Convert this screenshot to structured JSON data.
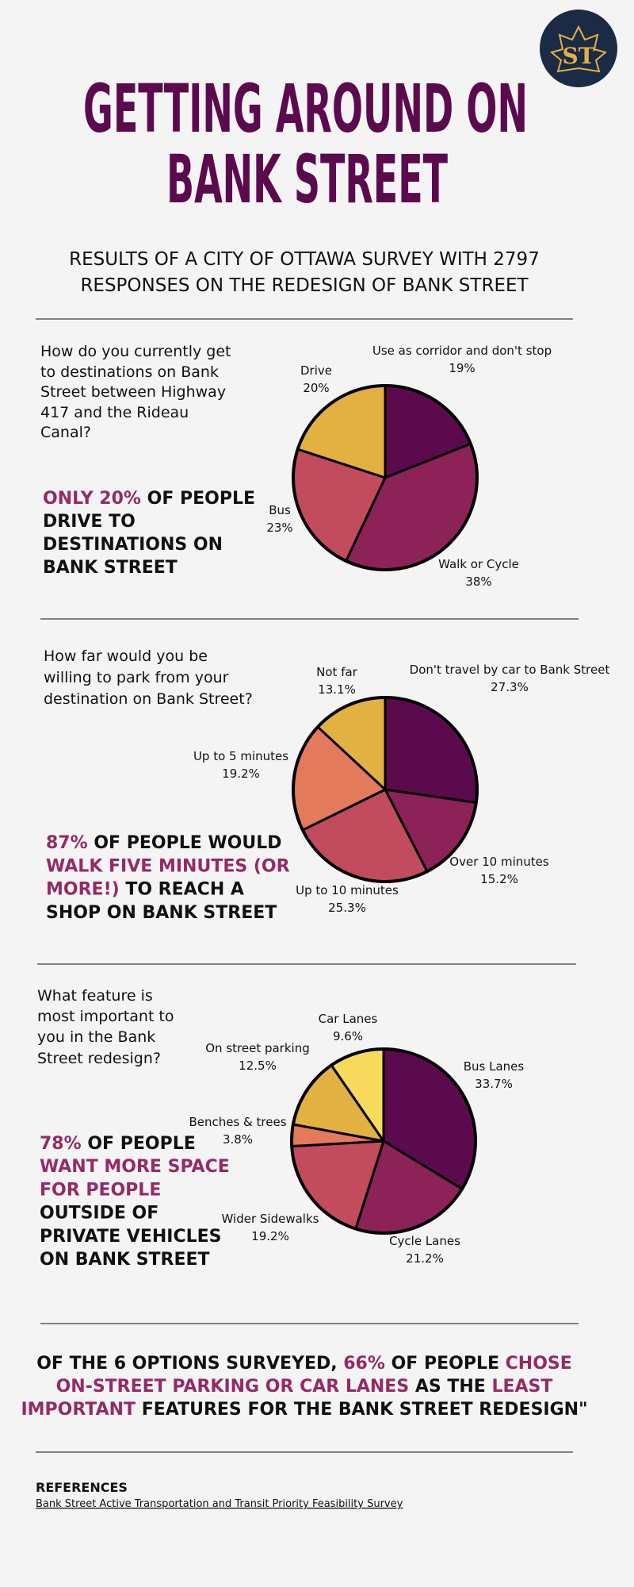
{
  "header": {
    "logo": "ST",
    "title_lines": [
      "GETTING AROUND ON",
      "BANK STREET"
    ],
    "subtitle_lines": [
      "RESULTS OF A CITY OF OTTAWA SURVEY WITH 2797",
      "RESPONSES ON THE REDESIGN OF BANK STREET"
    ]
  },
  "chart_data": [
    {
      "type": "pie",
      "title_lines": [
        "How do you currently get",
        "to destinations on Bank",
        "Street between Highway",
        "417 and the Rideau",
        "Canal?"
      ],
      "categories": [
        "Use as corridor and don't stop",
        "Walk or Cycle",
        "Bus",
        "Drive"
      ],
      "values": [
        19,
        38,
        23,
        20
      ],
      "value_labels": [
        "19%",
        "38%",
        "23%",
        "20%"
      ],
      "colors": [
        "#5c0a4e",
        "#8c2257",
        "#c24b5e",
        "#e3b141"
      ]
    },
    {
      "type": "pie",
      "title_lines": [
        "How far would you be",
        "willing to park from your",
        "destination on Bank Street?"
      ],
      "categories": [
        "Don't travel by car to Bank Street",
        "Over 10 minutes",
        "Up to 10 minutes",
        "Up to 5 minutes",
        "Not far"
      ],
      "values": [
        27.3,
        15.2,
        25.3,
        19.2,
        13.1
      ],
      "value_labels": [
        "27.3%",
        "15.2%",
        "25.3%",
        "19.2%",
        "13.1%"
      ],
      "colors": [
        "#5c0a4e",
        "#8c2257",
        "#c24b5e",
        "#e27a5b",
        "#e3b141"
      ]
    },
    {
      "type": "pie",
      "title_lines": [
        "What feature is",
        "most important to",
        "you in the Bank",
        "Street redesign?"
      ],
      "categories": [
        "Bus Lanes",
        "Cycle Lanes",
        "Wider Sidewalks",
        "Benches & trees",
        "On street parking",
        "Car Lanes"
      ],
      "values": [
        33.7,
        21.2,
        19.2,
        3.8,
        12.5,
        9.6
      ],
      "value_labels": [
        "33.7%",
        "21.2%",
        "19.2%",
        "3.8%",
        "12.5%",
        "9.6%"
      ],
      "colors": [
        "#5c0a4e",
        "#8c2257",
        "#c24b5e",
        "#e27a5b",
        "#e3b141",
        "#f7d95c"
      ]
    }
  ],
  "callouts": [
    [
      [
        {
          "text": "ONLY 20%",
          "accent": true
        },
        {
          "text": " OF PEOPLE"
        }
      ],
      [
        {
          "text": "DRIVE TO"
        }
      ],
      [
        {
          "text": "DESTINATIONS ON"
        }
      ],
      [
        {
          "text": "BANK STREET"
        }
      ]
    ],
    [
      [
        {
          "text": "87%",
          "accent": true
        },
        {
          "text": " OF PEOPLE WOULD"
        }
      ],
      [
        {
          "text": "WALK FIVE MINUTES (OR",
          "accent": true
        }
      ],
      [
        {
          "text": "MORE!)",
          "accent": true
        },
        {
          "text": " TO REACH A"
        }
      ],
      [
        {
          "text": "SHOP ON BANK STREET"
        }
      ]
    ],
    [
      [
        {
          "text": "78%",
          "accent": true
        },
        {
          "text": " OF PEOPLE"
        }
      ],
      [
        {
          "text": "WANT MORE SPACE",
          "accent": true
        }
      ],
      [
        {
          "text": "FOR PEOPLE",
          "accent": true
        }
      ],
      [
        {
          "text": "OUTSIDE OF"
        }
      ],
      [
        {
          "text": "PRIVATE VEHICLES"
        }
      ],
      [
        {
          "text": "ON BANK STREET"
        }
      ]
    ]
  ],
  "summary": [
    [
      {
        "text": "OF THE 6 OPTIONS SURVEYED, "
      },
      {
        "text": "66%",
        "accent": true
      },
      {
        "text": " OF PEOPLE "
      },
      {
        "text": "CHOSE",
        "accent": true
      }
    ],
    [
      {
        "text": "ON-STREET PARKING OR CAR LANES",
        "accent": true
      },
      {
        "text": " AS THE "
      },
      {
        "text": "LEAST",
        "accent": true
      }
    ],
    [
      {
        "text": "IMPORTANT",
        "accent": true
      },
      {
        "text": " FEATURES FOR THE BANK STREET REDESIGN\""
      }
    ]
  ],
  "references": {
    "heading": "REFERENCES",
    "link": "Bank Street Active Transportation and Transit Priority Feasibility Survey"
  }
}
